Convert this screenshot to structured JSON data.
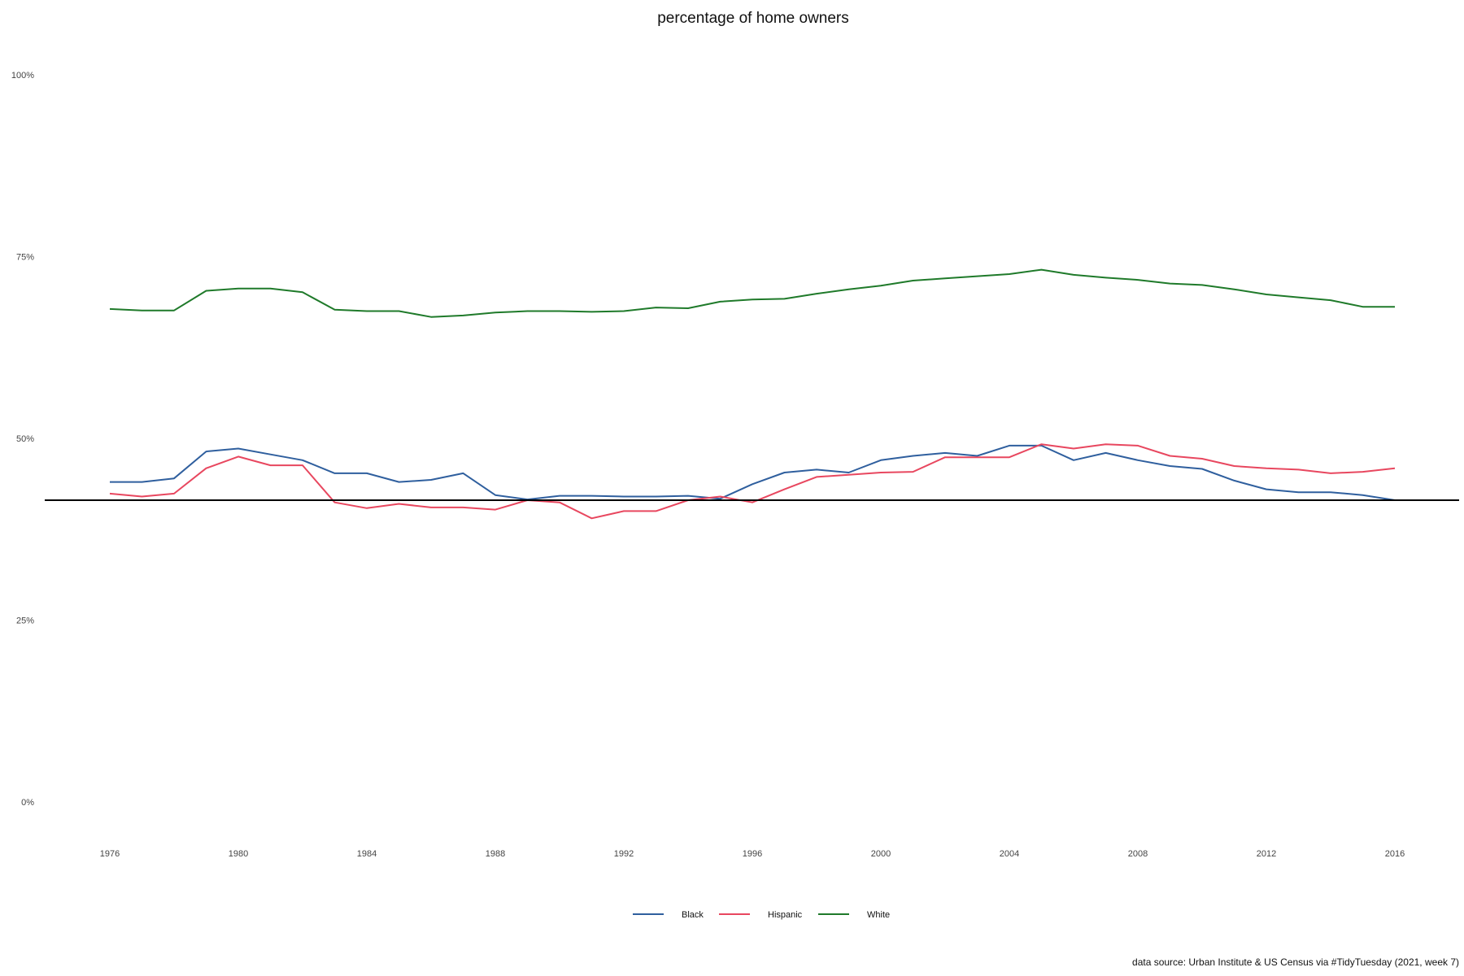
{
  "chart_data": {
    "type": "line",
    "title": "percentage of home owners",
    "caption": "data source: Urban Institute & US Census via #TidyTuesday (2021, week 7)",
    "xlabel": "",
    "ylabel": "",
    "xlim": [
      1976,
      2016
    ],
    "ylim": [
      0,
      1
    ],
    "x_ticks": [
      1976,
      1980,
      1984,
      1988,
      1992,
      1996,
      2000,
      2004,
      2008,
      2012,
      2016
    ],
    "y_ticks": [
      {
        "value": 0,
        "label": "0%"
      },
      {
        "value": 0.25,
        "label": "25%"
      },
      {
        "value": 0.5,
        "label": "50%"
      },
      {
        "value": 0.75,
        "label": "75%"
      },
      {
        "value": 1,
        "label": "100%"
      }
    ],
    "reference_line": {
      "y": 0.415,
      "color": "#000000"
    },
    "grid": false,
    "legend_position": "bottom",
    "x": [
      1976,
      1977,
      1978,
      1979,
      1980,
      1981,
      1982,
      1983,
      1984,
      1985,
      1986,
      1987,
      1988,
      1989,
      1990,
      1991,
      1992,
      1993,
      1994,
      1995,
      1996,
      1997,
      1998,
      1999,
      2000,
      2001,
      2002,
      2003,
      2004,
      2005,
      2006,
      2007,
      2008,
      2009,
      2010,
      2011,
      2012,
      2013,
      2014,
      2015,
      2016
    ],
    "series": [
      {
        "name": "Black",
        "color": "#2f5f9e",
        "values": [
          0.44,
          0.44,
          0.445,
          0.482,
          0.486,
          0.478,
          0.47,
          0.452,
          0.452,
          0.44,
          0.443,
          0.452,
          0.422,
          0.416,
          0.421,
          0.421,
          0.42,
          0.42,
          0.421,
          0.417,
          0.437,
          0.453,
          0.457,
          0.453,
          0.47,
          0.476,
          0.48,
          0.476,
          0.49,
          0.49,
          0.47,
          0.48,
          0.47,
          0.462,
          0.458,
          0.442,
          0.43,
          0.426,
          0.426,
          0.422,
          0.415
        ]
      },
      {
        "name": "Hispanic",
        "color": "#e8475f",
        "values": [
          0.424,
          0.42,
          0.424,
          0.459,
          0.475,
          0.463,
          0.463,
          0.412,
          0.404,
          0.41,
          0.405,
          0.405,
          0.402,
          0.415,
          0.412,
          0.39,
          0.4,
          0.4,
          0.415,
          0.42,
          0.412,
          0.43,
          0.447,
          0.45,
          0.453,
          0.454,
          0.474,
          0.474,
          0.474,
          0.492,
          0.486,
          0.492,
          0.49,
          0.476,
          0.472,
          0.462,
          0.459,
          0.457,
          0.452,
          0.454,
          0.459
        ]
      },
      {
        "name": "White",
        "color": "#1f7a2a",
        "values": [
          0.678,
          0.676,
          0.676,
          0.703,
          0.706,
          0.706,
          0.701,
          0.677,
          0.675,
          0.675,
          0.667,
          0.669,
          0.673,
          0.675,
          0.675,
          0.674,
          0.675,
          0.68,
          0.679,
          0.688,
          0.691,
          0.692,
          0.699,
          0.705,
          0.71,
          0.717,
          0.72,
          0.723,
          0.726,
          0.732,
          0.725,
          0.721,
          0.718,
          0.713,
          0.711,
          0.705,
          0.698,
          0.694,
          0.69,
          0.681,
          0.681
        ]
      }
    ]
  }
}
